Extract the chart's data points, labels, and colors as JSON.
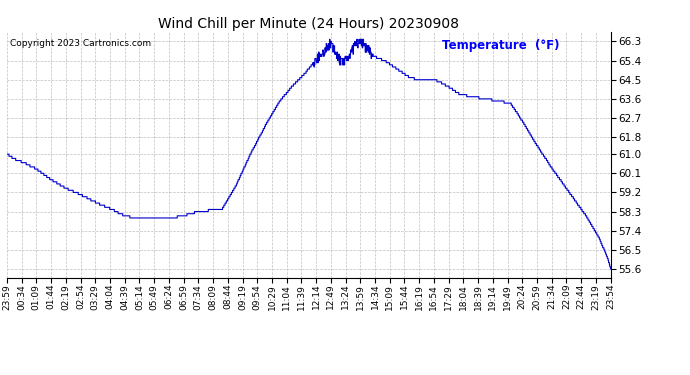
{
  "title": "Wind Chill per Minute (24 Hours) 20230908",
  "copyright_text": "Copyright 2023 Cartronics.com",
  "legend_text": "Temperature  (°F)",
  "line_color": "#0000cc",
  "background_color": "#ffffff",
  "grid_color": "#b0b0b0",
  "title_color": "#000000",
  "legend_color": "#0000ff",
  "copyright_color": "#000000",
  "ylim": [
    55.2,
    66.75
  ],
  "yticks": [
    55.6,
    56.5,
    57.4,
    58.3,
    59.2,
    60.1,
    61.0,
    61.8,
    62.7,
    63.6,
    64.5,
    65.4,
    66.3
  ],
  "xtick_labels": [
    "23:59",
    "00:34",
    "01:09",
    "01:44",
    "02:19",
    "02:54",
    "03:29",
    "04:04",
    "04:39",
    "05:14",
    "05:49",
    "06:24",
    "06:59",
    "07:34",
    "08:09",
    "08:44",
    "09:19",
    "09:54",
    "10:29",
    "11:04",
    "11:39",
    "12:14",
    "12:49",
    "13:24",
    "13:59",
    "14:34",
    "15:09",
    "15:44",
    "16:19",
    "16:54",
    "17:29",
    "18:04",
    "18:39",
    "19:14",
    "19:49",
    "20:24",
    "20:59",
    "21:34",
    "22:09",
    "22:44",
    "23:19",
    "23:54"
  ],
  "num_points": 1440,
  "ctrl_x": [
    0,
    20,
    40,
    70,
    105,
    140,
    175,
    215,
    250,
    280,
    305,
    330,
    355,
    390,
    420,
    455,
    480,
    510,
    545,
    580,
    620,
    650,
    680,
    710,
    730,
    750,
    760,
    770,
    780,
    790,
    800,
    815,
    830,
    845,
    855,
    865,
    875,
    885,
    900,
    930,
    960,
    980,
    1000,
    1020,
    1050,
    1080,
    1110,
    1140,
    1170,
    1200,
    1230,
    1260,
    1300,
    1340,
    1380,
    1410,
    1430,
    1439
  ],
  "ctrl_y": [
    61.0,
    60.75,
    60.6,
    60.3,
    59.8,
    59.4,
    59.1,
    58.7,
    58.4,
    58.1,
    58.0,
    57.95,
    57.95,
    58.0,
    58.1,
    58.3,
    58.35,
    58.35,
    59.5,
    61.0,
    62.5,
    63.5,
    64.2,
    64.8,
    65.3,
    65.7,
    66.0,
    66.2,
    65.9,
    65.5,
    65.3,
    65.6,
    66.1,
    66.3,
    66.0,
    65.8,
    65.6,
    65.5,
    65.4,
    65.0,
    64.6,
    64.5,
    64.5,
    64.5,
    64.2,
    63.8,
    63.7,
    63.6,
    63.5,
    63.4,
    62.5,
    61.5,
    60.3,
    59.2,
    58.1,
    57.1,
    56.2,
    55.6
  ]
}
